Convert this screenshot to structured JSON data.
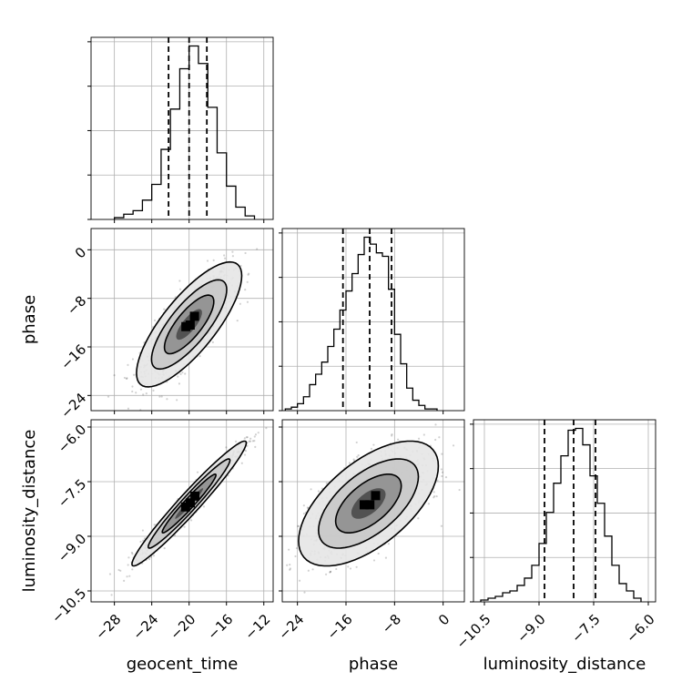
{
  "chart_data": {
    "type": "corner",
    "parameters": [
      "geocent_time",
      "phase",
      "luminosity_distance"
    ],
    "axis_labels": {
      "x": [
        "geocent_time",
        "phase",
        "luminosity_distance"
      ],
      "y": [
        "phase",
        "luminosity_distance"
      ]
    },
    "ranges": {
      "geocent_time": [
        -30.5,
        -11
      ],
      "phase": [
        -26.5,
        3.5
      ],
      "luminosity_distance": [
        -10.8,
        -5.8
      ]
    },
    "ticks": {
      "geocent_time": [
        -28,
        -24,
        -20,
        -16,
        -12
      ],
      "phase": [
        -24,
        -16,
        -8,
        0
      ],
      "luminosity_distance": [
        -10.5,
        -9.0,
        -7.5,
        -6.0
      ]
    },
    "tick_labels": {
      "geocent_time": [
        "−28",
        "−24",
        "−20",
        "−16",
        "−12"
      ],
      "phase": [
        "−24",
        "−16",
        "−8",
        "0"
      ],
      "luminosity_distance": [
        "−10.5",
        "−9.0",
        "−7.5",
        "−6.0"
      ]
    },
    "quantiles": {
      "geocent_time": [
        -22.2,
        -20.0,
        -18.1
      ],
      "phase": [
        -16.5,
        -12.1,
        -8.5
      ],
      "luminosity_distance": [
        -8.85,
        -8.05,
        -7.45
      ]
    },
    "histograms": {
      "geocent_time": {
        "bin_edges": [
          -28,
          -27,
          -26,
          -25,
          -24,
          -23,
          -22,
          -21,
          -20,
          -19,
          -18,
          -17,
          -16,
          -15,
          -14,
          -13
        ],
        "counts": [
          1,
          3,
          5,
          11,
          20,
          40,
          63,
          86,
          99,
          89,
          64,
          38,
          19,
          7,
          2
        ]
      },
      "phase": {
        "bin_edges": [
          -26,
          -25,
          -24,
          -23,
          -22,
          -21,
          -20,
          -19,
          -18,
          -17,
          -16,
          -15,
          -14,
          -13,
          -12,
          -11,
          -10,
          -9,
          -8,
          -7,
          -6,
          -5,
          -4,
          -3,
          -2,
          -1
        ],
        "counts": [
          1,
          2,
          4,
          8,
          15,
          21,
          28,
          37,
          47,
          58,
          69,
          79,
          90,
          100,
          96,
          91,
          89,
          70,
          44,
          27,
          13,
          6,
          3,
          1,
          1
        ]
      },
      "luminosity_distance": {
        "bin_edges": [
          -10.6,
          -10.4,
          -10.2,
          -10.0,
          -9.8,
          -9.6,
          -9.4,
          -9.2,
          -9.0,
          -8.8,
          -8.6,
          -8.4,
          -8.2,
          -8.0,
          -7.8,
          -7.6,
          -7.4,
          -7.2,
          -7.0,
          -6.8,
          -6.6,
          -6.4,
          -6.2
        ],
        "counts": [
          1,
          2,
          3,
          5,
          6,
          9,
          13,
          20,
          32,
          49,
          65,
          80,
          94,
          95,
          86,
          69,
          54,
          36,
          20,
          10,
          6,
          2
        ]
      }
    },
    "joint": [
      {
        "x": "geocent_time",
        "y": "phase",
        "center": [
          -20,
          -12.3
        ],
        "sigma": [
          2.3,
          4.2
        ],
        "rho": 0.78
      },
      {
        "x": "geocent_time",
        "y": "luminosity_distance",
        "center": [
          -20,
          -8.1
        ],
        "sigma": [
          2.5,
          0.7
        ],
        "rho": 0.97
      },
      {
        "x": "phase",
        "y": "luminosity_distance",
        "center": [
          -12.3,
          -8.1
        ],
        "sigma": [
          4.7,
          0.7
        ],
        "rho": 0.6
      }
    ]
  }
}
